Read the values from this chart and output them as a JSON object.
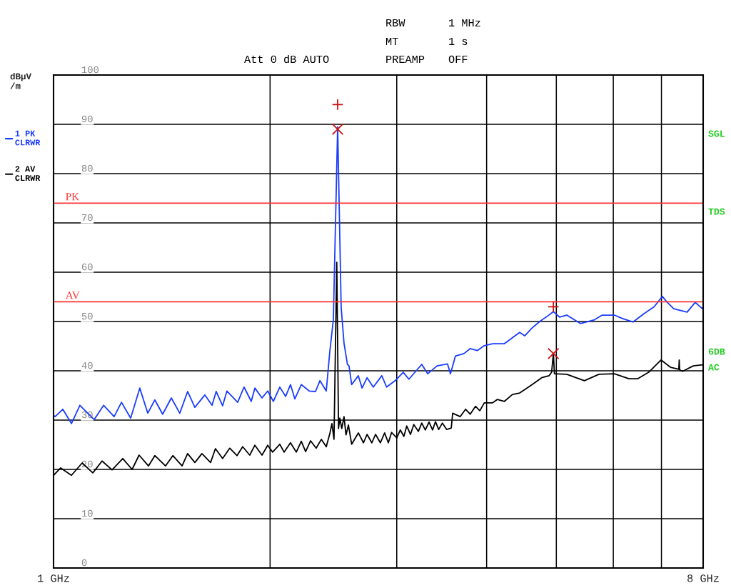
{
  "chart_data": {
    "type": "line",
    "ylabel": "dBµV\n/m",
    "annotations": [
      "RBW",
      "1 MHz",
      "MT",
      "1 s",
      "Att 0 dB AUTO",
      "PREAMP",
      "OFF",
      "SGL",
      "TDS",
      "6DB",
      "AC"
    ],
    "xlim": [
      1,
      8
    ],
    "log": "x",
    "xticks": [
      {
        "value": 1,
        "label": "1 GHz"
      },
      {
        "value": 2,
        "label": null
      },
      {
        "value": 3,
        "label": null
      },
      {
        "value": 4,
        "label": null
      },
      {
        "value": 5,
        "label": null
      },
      {
        "value": 6,
        "label": null
      },
      {
        "value": 7,
        "label": null
      },
      {
        "value": 8,
        "label": "8 GHz"
      }
    ],
    "ylim": [
      0,
      100
    ],
    "yticks": [
      0,
      10,
      20,
      30,
      40,
      50,
      60,
      70,
      80,
      90,
      100
    ],
    "grid": true,
    "legend": "left",
    "ref_lines": [
      {
        "axis": "y",
        "value": 74,
        "label": "PK",
        "color": "#ff3333"
      },
      {
        "axis": "y",
        "value": 54,
        "label": "AV",
        "color": "#ff3333"
      }
    ],
    "series": [
      {
        "name": "1 PK\nCLRWR",
        "color": "#1a3cff",
        "x": [
          1.0,
          1.005,
          1.03,
          1.059,
          1.088,
          1.139,
          1.174,
          1.214,
          1.243,
          1.28,
          1.318,
          1.352,
          1.383,
          1.418,
          1.458,
          1.498,
          1.536,
          1.572,
          1.623,
          1.661,
          1.683,
          1.718,
          1.742,
          1.803,
          1.84,
          1.883,
          1.905,
          1.949,
          1.985,
          2.021,
          2.063,
          2.102,
          2.135,
          2.165,
          2.21,
          2.267,
          2.313,
          2.346,
          2.394,
          2.421,
          2.449,
          2.483,
          2.511,
          2.534,
          2.562,
          2.575,
          2.597,
          2.653,
          2.685,
          2.728,
          2.783,
          2.86,
          2.904,
          2.985,
          3.063,
          3.119,
          3.25,
          3.313,
          3.413,
          3.529,
          3.563,
          3.62,
          3.72,
          3.795,
          3.882,
          3.97,
          4.077,
          4.234,
          4.446,
          4.519,
          4.62,
          4.74,
          4.851,
          4.953,
          5.05,
          5.17,
          5.4,
          5.64,
          5.79,
          6.02,
          6.18,
          6.39,
          6.62,
          6.84,
          7.02,
          7.13,
          7.28,
          7.6,
          7.8,
          7.98,
          8.0
        ],
        "values": [
          31,
          30.7,
          32.2,
          29.3,
          33.0,
          30.1,
          33.0,
          30.7,
          33.6,
          30.4,
          36.5,
          31.4,
          34.1,
          31.2,
          34.5,
          31.4,
          35.8,
          32.6,
          35.1,
          33.0,
          35.8,
          32.9,
          35.9,
          33.6,
          36.7,
          33.8,
          36.5,
          34.5,
          35.9,
          33.8,
          36.7,
          34.8,
          37.2,
          34.3,
          37.2,
          35.9,
          35.8,
          38.0,
          35.9,
          43.8,
          50.4,
          89.5,
          52.9,
          45.6,
          41.3,
          41.0,
          37.2,
          39.0,
          36.5,
          38.6,
          36.7,
          39.0,
          36.7,
          38.0,
          39.7,
          38.3,
          41.3,
          39.4,
          41.0,
          41.4,
          39.4,
          43.0,
          43.5,
          44.5,
          44.1,
          45.1,
          45.5,
          45.5,
          47.8,
          47.1,
          48.6,
          50.0,
          51.0,
          52.0,
          50.9,
          51.3,
          49.6,
          50.3,
          51.3,
          51.3,
          50.6,
          49.9,
          51.6,
          53.0,
          55.1,
          53.9,
          52.6,
          51.9,
          53.9,
          52.6,
          53.0
        ]
      },
      {
        "name": "2 AV\nCLRWR",
        "color": "#000000",
        "x": [
          1.0,
          1.023,
          1.059,
          1.096,
          1.134,
          1.168,
          1.206,
          1.248,
          1.286,
          1.315,
          1.355,
          1.383,
          1.431,
          1.465,
          1.509,
          1.536,
          1.572,
          1.608,
          1.653,
          1.679,
          1.718,
          1.758,
          1.799,
          1.832,
          1.874,
          1.905,
          1.949,
          1.985,
          2.016,
          2.063,
          2.092,
          2.135,
          2.175,
          2.21,
          2.241,
          2.277,
          2.318,
          2.357,
          2.394,
          2.421,
          2.438,
          2.454,
          2.476,
          2.49,
          2.5,
          2.516,
          2.534,
          2.55,
          2.57,
          2.597,
          2.653,
          2.697,
          2.728,
          2.77,
          2.803,
          2.847,
          2.886,
          2.92,
          2.951,
          3.0,
          3.034,
          3.069,
          3.098,
          3.135,
          3.168,
          3.215,
          3.25,
          3.287,
          3.327,
          3.365,
          3.396,
          3.431,
          3.472,
          3.519,
          3.572,
          3.588,
          3.675,
          3.74,
          3.795,
          3.86,
          3.914,
          3.97,
          4.077,
          4.141,
          4.234,
          4.345,
          4.446,
          4.551,
          4.658,
          4.77,
          4.885,
          4.925,
          4.953,
          4.97,
          5.17,
          5.47,
          5.73,
          6.02,
          6.31,
          6.49,
          6.72,
          6.99,
          7.21,
          7.4,
          7.41,
          7.42,
          7.49,
          7.75,
          7.98
        ],
        "values": [
          18.8,
          20.3,
          18.8,
          21.3,
          19.3,
          21.7,
          19.9,
          22.2,
          20.0,
          22.9,
          20.7,
          22.8,
          20.7,
          22.8,
          20.7,
          23.2,
          21.4,
          23.2,
          21.4,
          24.2,
          22.2,
          24.3,
          22.8,
          24.6,
          22.9,
          24.9,
          22.9,
          24.9,
          23.5,
          25.1,
          23.5,
          25.4,
          23.5,
          25.7,
          23.6,
          25.8,
          24.3,
          26.1,
          24.6,
          27.2,
          29.3,
          26.1,
          62.0,
          28.3,
          30.4,
          28.3,
          30.7,
          27.0,
          29.0,
          25.1,
          27.4,
          25.4,
          27.1,
          25.4,
          27.1,
          25.4,
          27.4,
          25.4,
          27.5,
          26.4,
          28.0,
          26.7,
          28.8,
          27.1,
          29.1,
          27.7,
          29.4,
          28.0,
          29.6,
          28.0,
          29.7,
          28.1,
          29.4,
          28.1,
          28.4,
          31.4,
          30.7,
          32.2,
          31.2,
          32.8,
          31.9,
          33.5,
          33.5,
          34.2,
          33.8,
          35.2,
          35.5,
          36.5,
          37.5,
          38.6,
          39.0,
          39.7,
          43.5,
          39.4,
          39.3,
          38.0,
          39.3,
          39.4,
          38.4,
          38.4,
          39.7,
          42.2,
          40.7,
          40.3,
          42.2,
          40.2,
          39.9,
          41.0,
          41.2
        ]
      },
      {
        "color": "#cc1111",
        "type": "scatter",
        "marker": "plus",
        "x": [
          2.483,
          4.953
        ],
        "values": [
          94,
          53
        ]
      },
      {
        "color": "#cc1111",
        "type": "scatter",
        "marker": "cross",
        "x": [
          2.483,
          4.953
        ],
        "values": [
          89,
          43.5
        ]
      }
    ]
  }
}
